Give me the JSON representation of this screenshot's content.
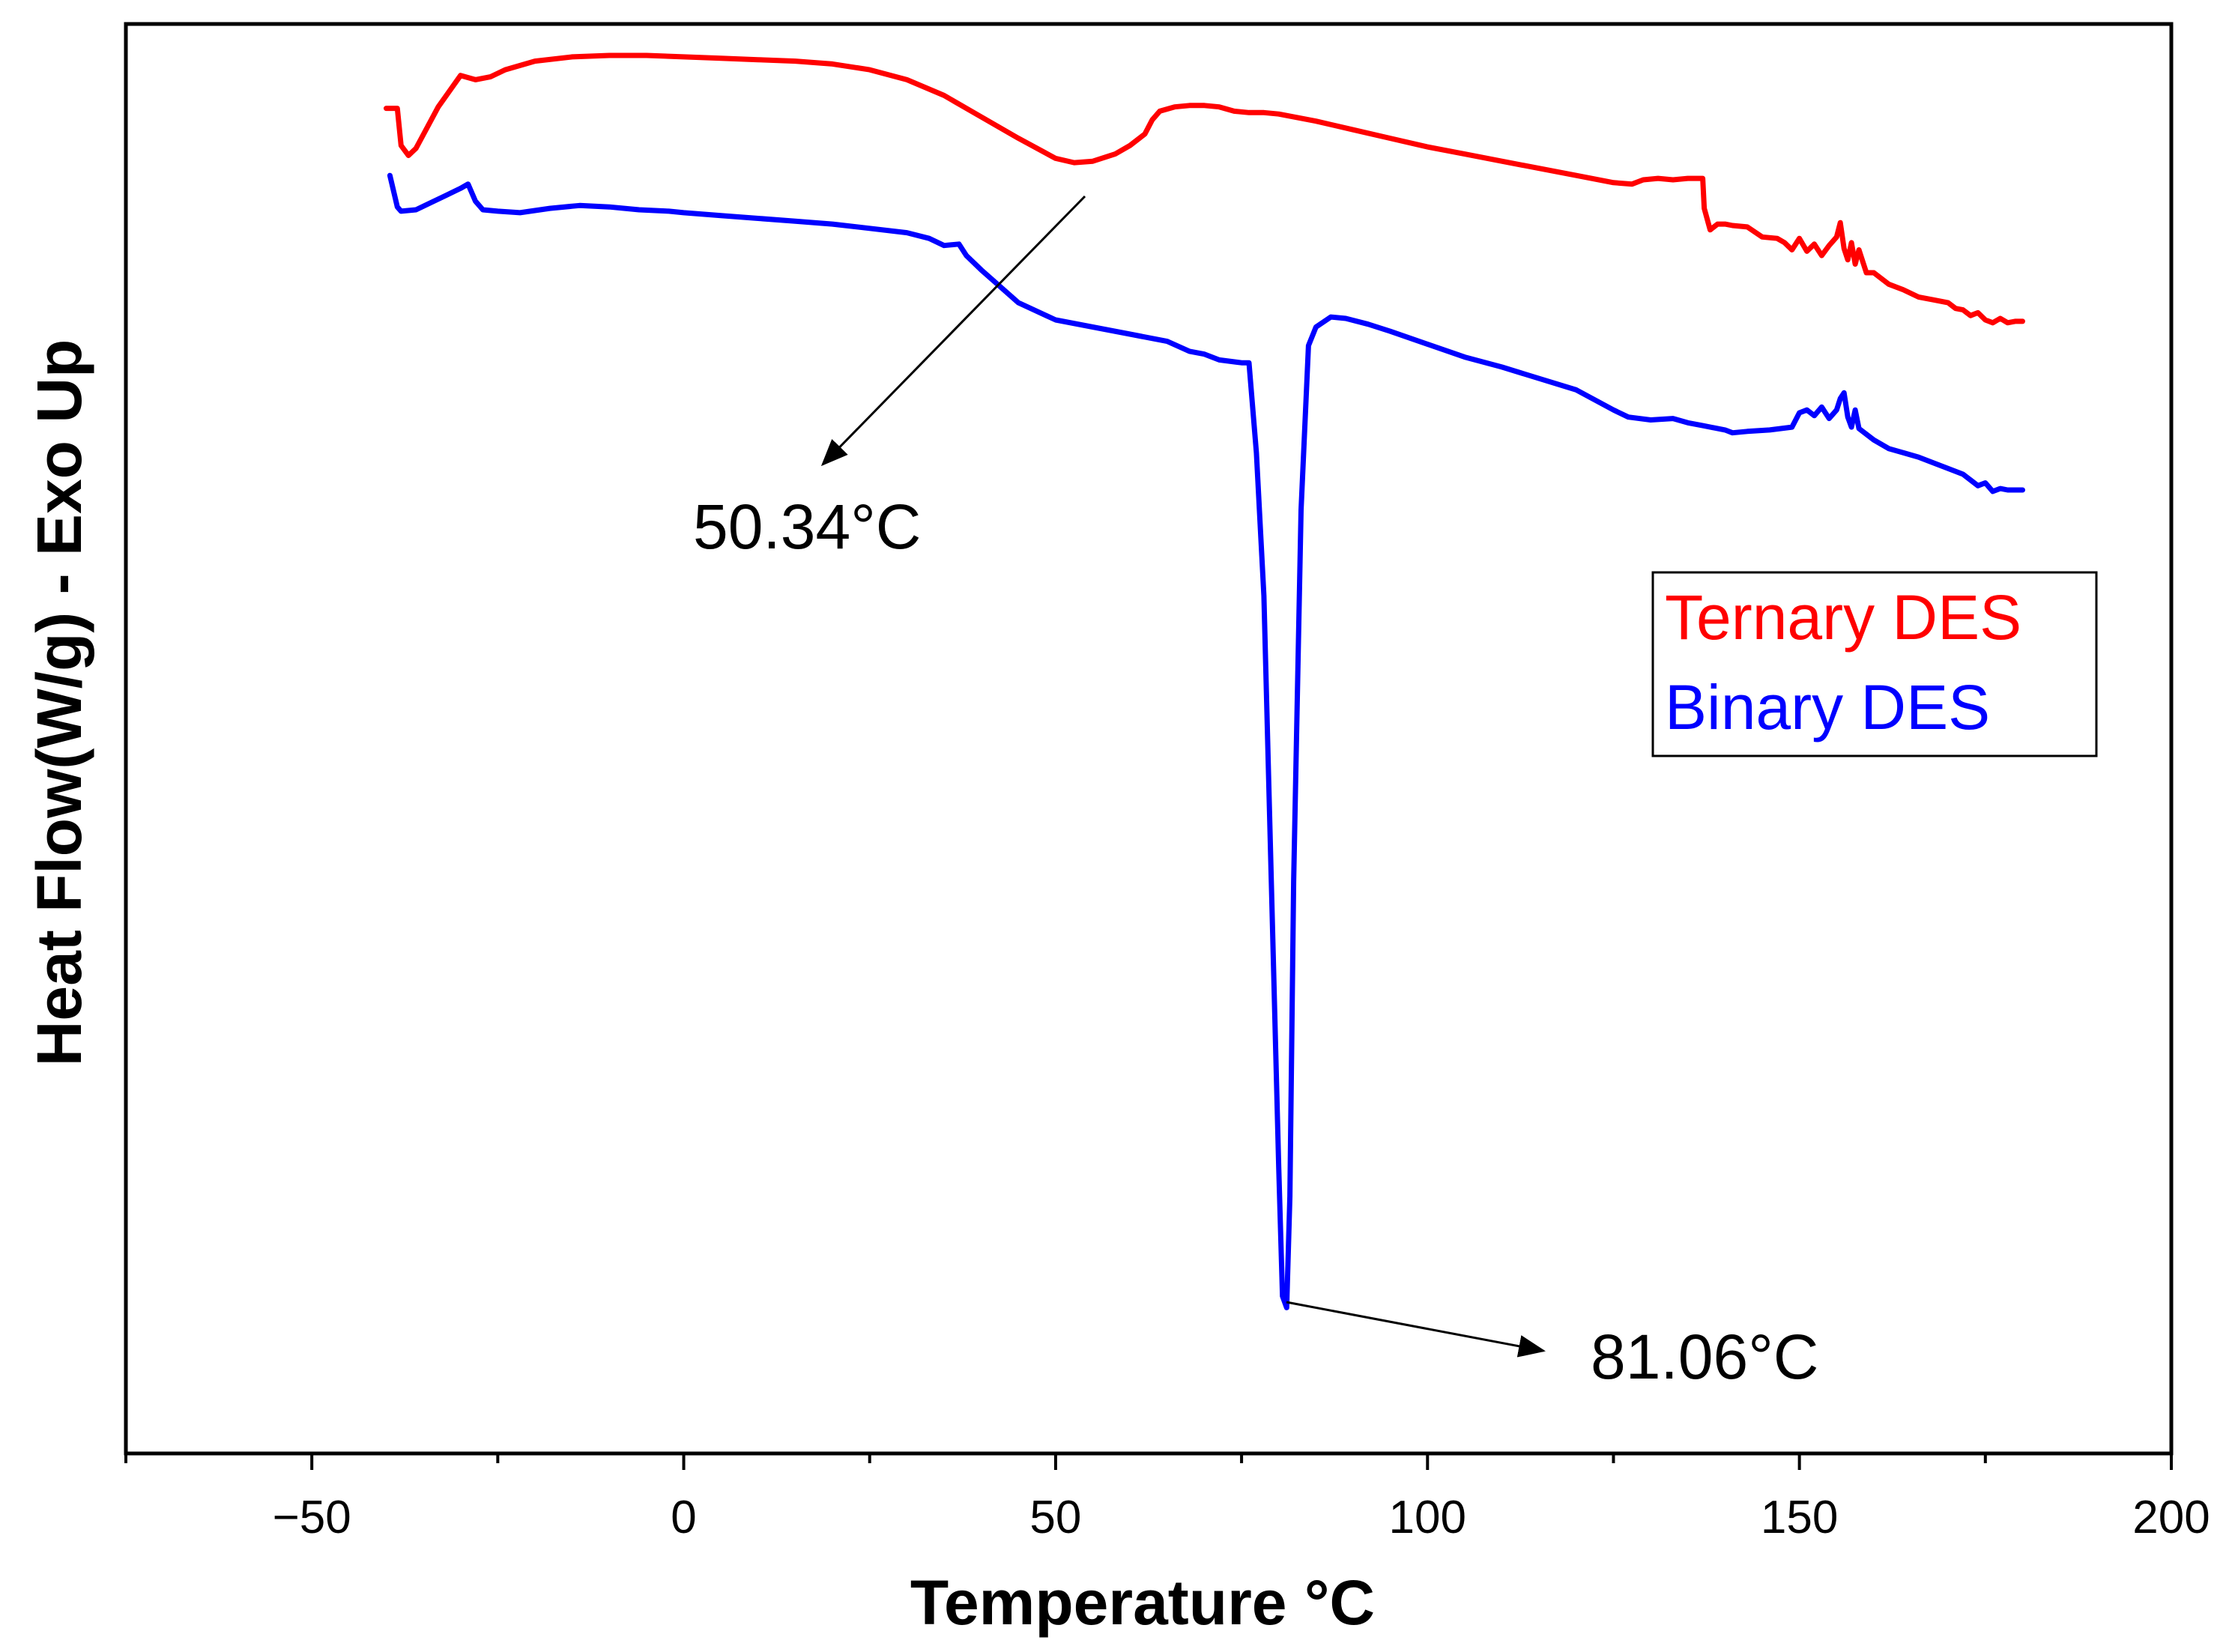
{
  "chart_data": {
    "type": "line",
    "title": "",
    "xlabel": "Temperature °C",
    "ylabel": "Heat Flow(W/g) - Exo Up",
    "xlim": [
      -75,
      200
    ],
    "ylim": [
      0,
      100
    ],
    "x_ticks": [
      -50,
      0,
      50,
      100,
      150,
      200
    ],
    "x_tick_labels": [
      "−50",
      "0",
      "50",
      "100",
      "150",
      "200"
    ],
    "y_tick_labels_shown": false,
    "grid": false,
    "legend_position": "right-middle",
    "series": [
      {
        "name": "Ternary DES",
        "color": "#ff0000",
        "x": [
          -40,
          -38.5,
          -38,
          -37,
          -36,
          -33,
          -30,
          -28,
          -26,
          -24,
          -20,
          -15,
          -10,
          -5,
          0,
          5,
          10,
          15,
          20,
          25,
          30,
          35,
          40,
          45,
          50,
          52.5,
          55,
          58,
          60,
          62,
          63,
          64,
          66,
          68,
          70,
          72,
          74,
          76,
          78,
          80,
          85,
          90,
          95,
          100,
          105,
          110,
          115,
          120,
          125,
          127.5,
          129,
          131,
          133,
          135,
          137,
          137.2,
          138,
          139,
          140,
          141,
          143,
          145,
          147,
          148,
          149,
          150,
          151,
          152,
          153,
          154,
          155,
          155.5,
          156,
          156.5,
          157,
          157.5,
          158,
          159,
          160,
          162,
          164,
          166,
          168,
          170,
          171,
          172,
          173,
          174,
          175,
          176,
          177,
          178,
          179,
          180
        ],
        "values": [
          94.1,
          94.1,
          91.5,
          90.8,
          91.3,
          94.2,
          96.4,
          96.1,
          96.3,
          96.8,
          97.4,
          97.7,
          97.8,
          97.8,
          97.7,
          97.6,
          97.5,
          97.4,
          97.2,
          96.8,
          96.1,
          95.0,
          93.5,
          92.0,
          90.6,
          90.3,
          90.4,
          90.9,
          91.5,
          92.3,
          93.3,
          93.9,
          94.2,
          94.3,
          94.3,
          94.2,
          93.9,
          93.8,
          93.8,
          93.7,
          93.2,
          92.6,
          92.0,
          91.4,
          90.9,
          90.4,
          89.9,
          89.4,
          88.9,
          88.8,
          89.1,
          89.2,
          89.1,
          89.2,
          89.2,
          87.1,
          85.6,
          86.0,
          86.0,
          85.9,
          85.8,
          85.1,
          85.0,
          84.7,
          84.2,
          85.0,
          84.1,
          84.6,
          83.8,
          84.5,
          85.1,
          86.1,
          84.3,
          83.5,
          84.7,
          83.2,
          84.2,
          82.6,
          82.6,
          81.8,
          81.4,
          80.9,
          80.7,
          80.5,
          80.1,
          80.0,
          79.6,
          79.8,
          79.3,
          79.1,
          79.4,
          79.1,
          79.2,
          79.2
        ]
      },
      {
        "name": "Binary DES",
        "color": "#0000ff",
        "x": [
          -39.5,
          -38.5,
          -38,
          -36,
          -34,
          -32,
          -30,
          -29,
          -28,
          -27,
          -25,
          -22,
          -18,
          -14,
          -10,
          -6,
          -2,
          0,
          5,
          10,
          15,
          20,
          25,
          30,
          33,
          35,
          37,
          38,
          40,
          45,
          50,
          55,
          60,
          65,
          68,
          70,
          72,
          75,
          76,
          77,
          78,
          79,
          80,
          80.5,
          81.06,
          81.5,
          82,
          83,
          84,
          85,
          87,
          89,
          92,
          95,
          100,
          105,
          110,
          115,
          120,
          125,
          127,
          130,
          133,
          135,
          137,
          140,
          141,
          143,
          146,
          149,
          150,
          151,
          152,
          153,
          154,
          155,
          155.5,
          156,
          156.5,
          157,
          157.5,
          158,
          160,
          162,
          164,
          166,
          168,
          170,
          172,
          173,
          174,
          175,
          176,
          177,
          178,
          180
        ],
        "values": [
          89.4,
          87.2,
          86.9,
          87.0,
          87.5,
          88.0,
          88.5,
          88.8,
          87.6,
          87.0,
          86.9,
          86.8,
          87.1,
          87.3,
          87.2,
          87.0,
          86.9,
          86.8,
          86.6,
          86.4,
          86.2,
          86.0,
          85.7,
          85.4,
          85.0,
          84.5,
          84.6,
          83.8,
          82.8,
          80.5,
          79.3,
          78.8,
          78.3,
          77.8,
          77.1,
          76.9,
          76.5,
          76.3,
          76.3,
          70.0,
          60.0,
          40.0,
          20.0,
          11.0,
          10.2,
          18.0,
          40.0,
          66.0,
          77.5,
          78.8,
          79.5,
          79.4,
          79.0,
          78.5,
          77.6,
          76.7,
          76.0,
          75.2,
          74.4,
          73.0,
          72.5,
          72.3,
          72.4,
          72.1,
          71.9,
          71.6,
          71.4,
          71.5,
          71.6,
          71.8,
          72.8,
          73.0,
          72.6,
          73.2,
          72.4,
          73.0,
          73.8,
          74.2,
          72.5,
          71.8,
          73.0,
          71.7,
          70.9,
          70.3,
          70.0,
          69.7,
          69.3,
          68.9,
          68.5,
          68.1,
          67.7,
          67.9,
          67.3,
          67.5,
          67.4,
          67.4
        ]
      }
    ],
    "annotations": [
      {
        "text": "50.34°C",
        "x": 50.34,
        "series": "Ternary DES"
      },
      {
        "text": "81.06°C",
        "x": 81.06,
        "series": "Binary DES"
      }
    ]
  }
}
